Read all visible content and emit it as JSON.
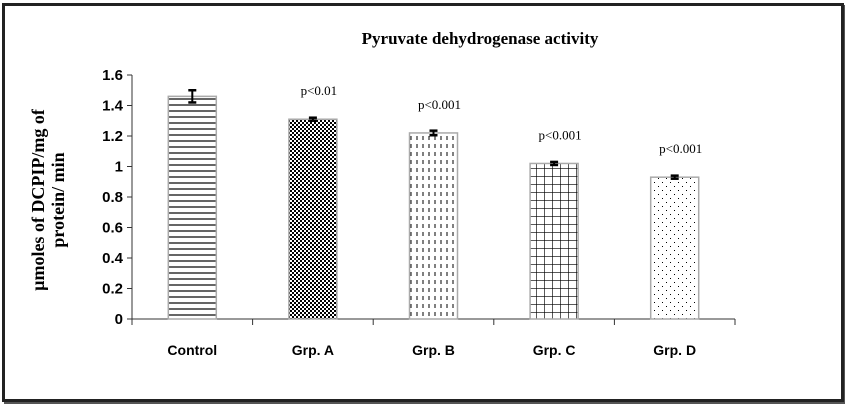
{
  "chart_data": {
    "type": "bar",
    "title": "Pyruvate dehydrogenase activity",
    "xlabel": "",
    "ylabel_lines": [
      "µmoles of DCPIP/mg of",
      "protein/ min"
    ],
    "ylim": [
      0,
      1.6
    ],
    "yticks": [
      "0",
      "0.2",
      "0.4",
      "0.6",
      "0.8",
      "1",
      "1.2",
      "1.4",
      "1.6"
    ],
    "ytick_values": [
      0,
      0.2,
      0.4,
      0.6,
      0.8,
      1.0,
      1.2,
      1.4,
      1.6
    ],
    "categories": [
      "Control",
      "Grp. A",
      "Grp. B",
      "Grp. C",
      "Grp. D"
    ],
    "values": [
      1.46,
      1.31,
      1.22,
      1.02,
      0.93
    ],
    "errors": [
      0.04,
      0.01,
      0.015,
      0.01,
      0.01
    ],
    "patterns": [
      "horizontal-lines",
      "dense-dots",
      "vertical-dashes",
      "grid",
      "sparse-dots"
    ],
    "annotations": [
      "",
      "p<0.01",
      "p<0.001",
      "p<0.001",
      "p<0.001"
    ],
    "grid": false,
    "legend": "none"
  }
}
